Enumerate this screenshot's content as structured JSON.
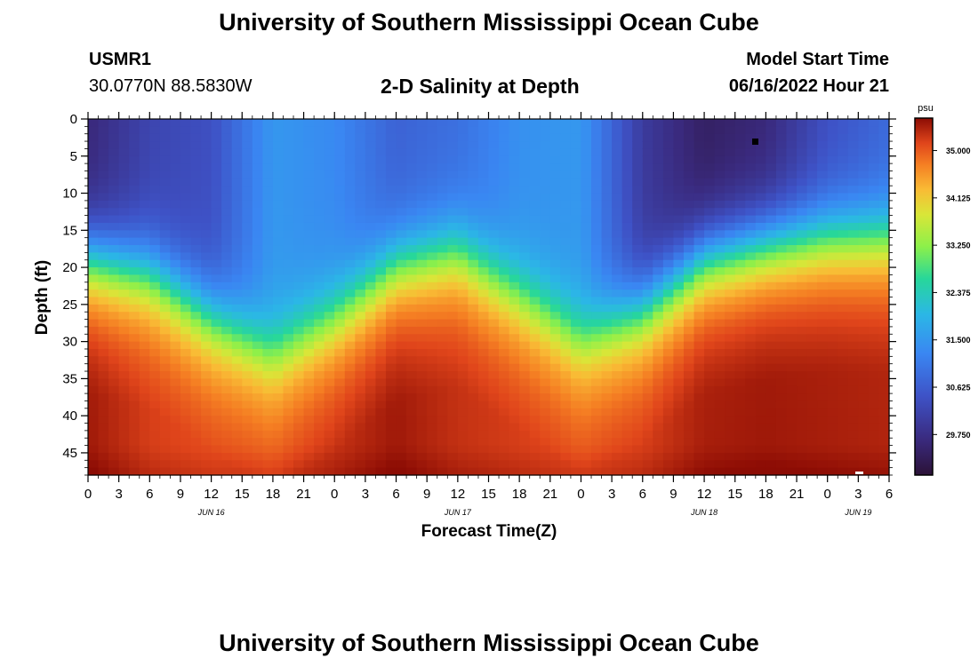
{
  "header": {
    "title": "University of Southern Mississippi Ocean Cube",
    "station_id": "USMR1",
    "coordinates": "30.0770N  88.5830W",
    "plot_title": "2-D Salinity at Depth",
    "model_start_label": "Model Start Time",
    "model_start_time": "06/16/2022 Hour 21"
  },
  "footer": {
    "title": "University of Southern Mississippi Ocean Cube"
  },
  "chart_data": {
    "type": "heatmap",
    "title": "2-D Salinity at Depth",
    "xlabel": "Forecast Time(Z)",
    "ylabel": "Depth (ft)",
    "x_ticks": [
      "0",
      "3",
      "6",
      "9",
      "12",
      "15",
      "18",
      "21",
      "0",
      "3",
      "6",
      "9",
      "12",
      "15",
      "18",
      "21",
      "0",
      "3",
      "6",
      "9",
      "12",
      "15",
      "18",
      "21",
      "0",
      "3",
      "6"
    ],
    "x_range_hours": [
      0,
      78
    ],
    "y_ticks": [
      "0",
      "5",
      "10",
      "15",
      "20",
      "25",
      "30",
      "35",
      "40",
      "45"
    ],
    "y_range_ft": [
      0,
      48
    ],
    "date_labels": [
      {
        "text": "JUN 16",
        "hour": 12
      },
      {
        "text": "JUN 17",
        "hour": 36
      },
      {
        "text": "JUN 18",
        "hour": 60
      },
      {
        "text": "JUN 19",
        "hour": 75
      }
    ],
    "colorbar": {
      "unit": "psu",
      "range": [
        29.0,
        35.6
      ],
      "ticks": [
        "35.000",
        "34.125",
        "33.250",
        "32.375",
        "31.500",
        "30.625",
        "29.750"
      ]
    },
    "profiles": {
      "hours": [
        0,
        6,
        12,
        18,
        24,
        30,
        36,
        42,
        48,
        54,
        60,
        66,
        72,
        78
      ],
      "halocline_depth_ft": [
        19,
        21,
        27,
        32,
        27,
        20,
        18,
        24,
        30,
        26,
        19,
        17,
        16,
        16
      ],
      "surface_salinity_psu": [
        29.6,
        30.2,
        30.4,
        31.5,
        31.3,
        30.7,
        30.9,
        31.4,
        31.5,
        30.0,
        29.4,
        29.6,
        30.4,
        30.8
      ],
      "deep_salinity_psu": [
        35.5,
        35.2,
        35.1,
        35.1,
        35.3,
        35.5,
        35.3,
        35.2,
        35.1,
        35.2,
        35.45,
        35.5,
        35.45,
        35.4
      ]
    }
  }
}
